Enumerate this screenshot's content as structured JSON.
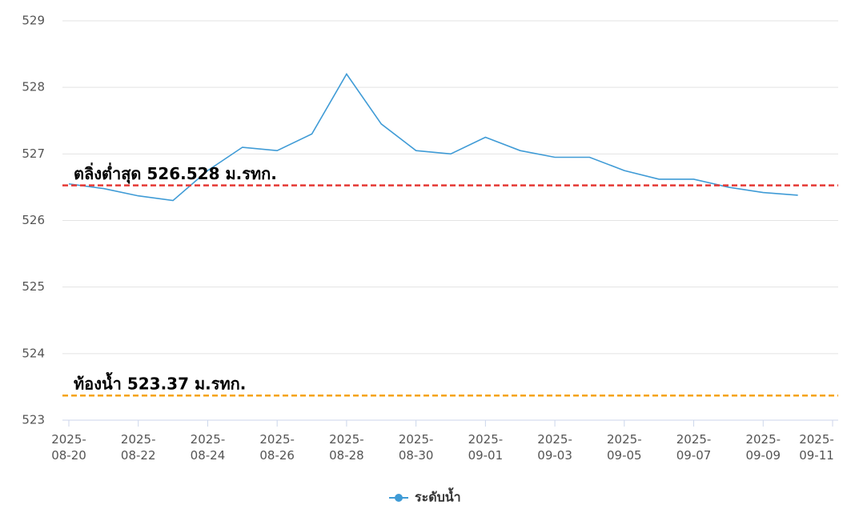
{
  "chart_data": {
    "type": "line",
    "x": [
      "2025-08-20",
      "2025-08-21",
      "2025-08-22",
      "2025-08-23",
      "2025-08-24",
      "2025-08-25",
      "2025-08-26",
      "2025-08-27",
      "2025-08-28",
      "2025-08-29",
      "2025-08-30",
      "2025-08-31",
      "2025-09-01",
      "2025-09-02",
      "2025-09-03",
      "2025-09-04",
      "2025-09-05",
      "2025-09-06",
      "2025-09-07",
      "2025-09-08",
      "2025-09-09",
      "2025-09-10"
    ],
    "series": [
      {
        "name": "ระดับน้ำ",
        "color": "#3f9bd6",
        "values": [
          526.55,
          526.48,
          526.37,
          526.3,
          526.75,
          527.1,
          527.05,
          527.3,
          528.2,
          527.45,
          527.05,
          527.0,
          527.25,
          527.05,
          526.95,
          526.95,
          526.75,
          526.62,
          526.62,
          526.5,
          526.42,
          526.38
        ]
      }
    ],
    "xlim": [
      "2025-08-20",
      "2025-09-11"
    ],
    "xticks": [
      "2025-08-20",
      "2025-08-22",
      "2025-08-24",
      "2025-08-26",
      "2025-08-28",
      "2025-08-30",
      "2025-09-01",
      "2025-09-03",
      "2025-09-05",
      "2025-09-07",
      "2025-09-09",
      "2025-09-11"
    ],
    "ylim": [
      523,
      529
    ],
    "yticks": [
      523,
      524,
      525,
      526,
      527,
      528,
      529
    ],
    "grid": true,
    "reference_lines": [
      {
        "value": 526.528,
        "label": "ตลิ่งต่ำสุด 526.528 ม.รทก.",
        "color": "#e53935"
      },
      {
        "value": 523.37,
        "label": "ท้องน้ำ 523.37 ม.รทก.",
        "color": "#f5a30c"
      }
    ],
    "legend": "bottom"
  }
}
